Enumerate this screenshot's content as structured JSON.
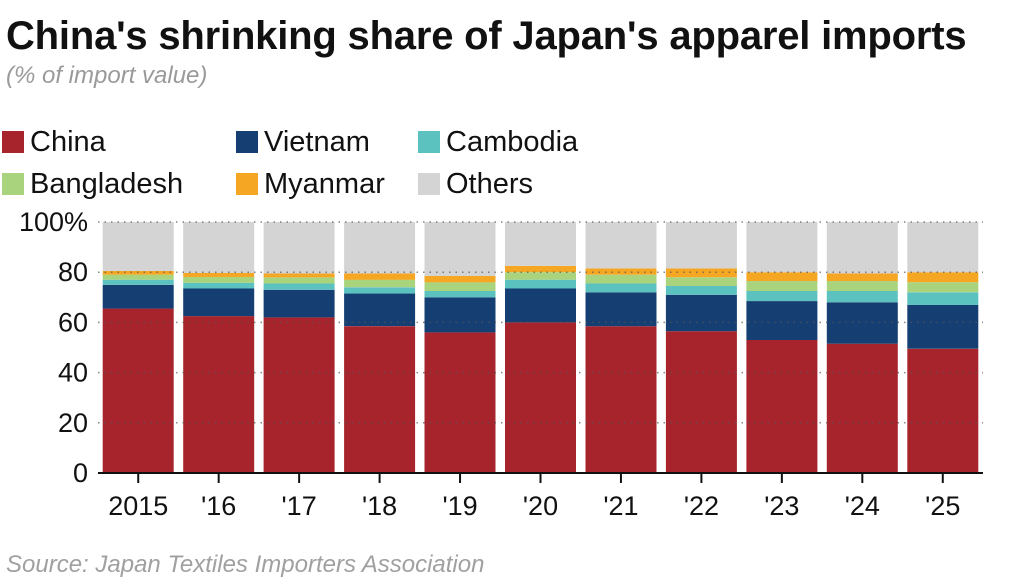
{
  "title": "China's shrinking share of Japan's apparel imports",
  "subtitle": "(% of import value)",
  "source": "Source: Japan Textiles Importers Association",
  "colors": {
    "China": "#a8242c",
    "Vietnam": "#153f73",
    "Cambodia": "#5cc2c0",
    "Bangladesh": "#aad37e",
    "Myanmar": "#f5a623",
    "Others": "#d4d4d4"
  },
  "chart_data": {
    "type": "bar",
    "stacked": true,
    "categories": [
      "2015",
      "'16",
      "'17",
      "'18",
      "'19",
      "'20",
      "'21",
      "'22",
      "'23",
      "'24",
      "'25"
    ],
    "series": [
      {
        "name": "China",
        "values": [
          65.5,
          62.5,
          62,
          58.5,
          56,
          60,
          58.5,
          56.5,
          53,
          51.5,
          49.5
        ]
      },
      {
        "name": "Vietnam",
        "values": [
          9.5,
          11,
          11,
          13,
          14,
          13.5,
          13.5,
          14.5,
          15.5,
          16.5,
          17.5
        ]
      },
      {
        "name": "Cambodia",
        "values": [
          2,
          2.3,
          2.5,
          2.5,
          2.5,
          3.5,
          3.5,
          3.5,
          4,
          4.5,
          5
        ]
      },
      {
        "name": "Bangladesh",
        "values": [
          2,
          2.3,
          2.5,
          3,
          3.5,
          3,
          3.5,
          3.5,
          4,
          4,
          4
        ]
      },
      {
        "name": "Myanmar",
        "values": [
          1.5,
          1.6,
          1.5,
          2.5,
          2.5,
          2.5,
          2.5,
          3.5,
          3.5,
          3,
          4
        ]
      },
      {
        "name": "Others",
        "values": [
          19.5,
          20.3,
          20.5,
          20.5,
          21.5,
          17.5,
          18.5,
          18.5,
          20,
          20.5,
          20
        ]
      }
    ],
    "ylim": [
      0,
      100
    ],
    "yticks": [
      "100%",
      "80",
      "60",
      "40",
      "20",
      "0"
    ],
    "ytick_values": [
      100,
      80,
      60,
      40,
      20,
      0
    ],
    "grid": true,
    "legend_position": "top"
  }
}
